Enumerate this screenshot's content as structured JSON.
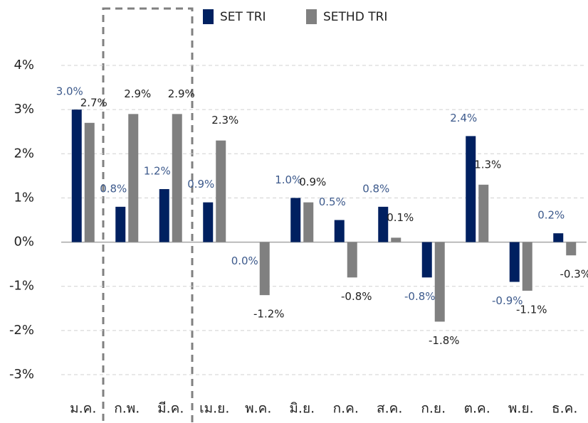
{
  "chart_data": {
    "type": "bar",
    "categories": [
      "ม.ค.",
      "ก.พ.",
      "มี.ค.",
      "เม.ย.",
      "พ.ค.",
      "มิ.ย.",
      "ก.ค.",
      "ส.ค.",
      "ก.ย.",
      "ต.ค.",
      "พ.ย.",
      "ธ.ค."
    ],
    "series": [
      {
        "name": "SET TRI",
        "color": "#002060",
        "values": [
          3.0,
          0.8,
          1.2,
          0.9,
          0.0,
          1.0,
          0.5,
          0.8,
          -0.8,
          2.4,
          -0.9,
          0.2
        ],
        "value_labels": [
          "3.0%",
          "0.8%",
          "1.2%",
          "0.9%",
          "0.0%",
          "1.0%",
          "0.5%",
          "0.8%",
          "-0.8%",
          "2.4%",
          "-0.9%",
          "0.2%"
        ]
      },
      {
        "name": "SETHD TRI",
        "color": "#808080",
        "values": [
          2.7,
          2.9,
          2.9,
          2.3,
          -1.2,
          0.9,
          -0.8,
          0.1,
          -1.8,
          1.3,
          -1.1,
          -0.3
        ],
        "value_labels": [
          "2.7%",
          "2.9%",
          "2.9%",
          "2.3%",
          "-1.2%",
          "0.9%",
          "-0.8%",
          "0.1%",
          "-1.8%",
          "1.3%",
          "-1.1%",
          "-0.3%"
        ]
      }
    ],
    "ylim": [
      -3,
      4
    ],
    "yticks": [
      {
        "value": -3,
        "label": "-3%"
      },
      {
        "value": -2,
        "label": "-2%"
      },
      {
        "value": -1,
        "label": "-1%"
      },
      {
        "value": 0,
        "label": "0%"
      },
      {
        "value": 1,
        "label": "1%"
      },
      {
        "value": 2,
        "label": "2%"
      },
      {
        "value": 3,
        "label": "3%"
      },
      {
        "value": 4,
        "label": "4%"
      }
    ],
    "grid": true
  }
}
